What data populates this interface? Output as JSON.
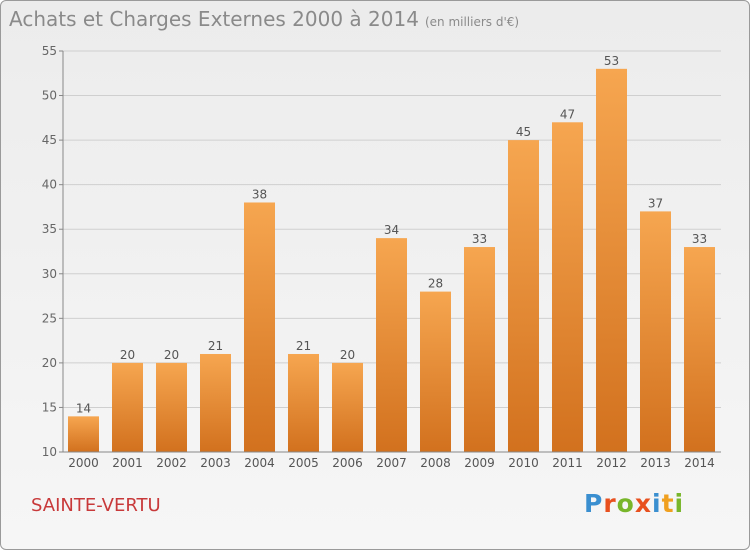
{
  "header": {
    "title": "Achats et Charges Externes 2000 à 2014",
    "subtitle": "(en milliers d'€)"
  },
  "footer": {
    "place": "SAINTE-VERTU",
    "logo": "Proxiti"
  },
  "colors": {
    "bar_top": "#f6a650",
    "bar_bottom": "#d2711e",
    "grid": "#cfcfcf",
    "place": "#c8393a"
  },
  "chart_data": {
    "type": "bar",
    "title": "Achats et Charges Externes 2000 à 2014",
    "subtitle": "(en milliers d'€)",
    "categories": [
      "2000",
      "2001",
      "2002",
      "2003",
      "2004",
      "2005",
      "2006",
      "2007",
      "2008",
      "2009",
      "2010",
      "2011",
      "2012",
      "2013",
      "2014"
    ],
    "values": [
      14,
      20,
      20,
      21,
      38,
      21,
      20,
      34,
      28,
      33,
      45,
      47,
      53,
      37,
      33
    ],
    "ylim": [
      10,
      55
    ],
    "yticks": [
      10,
      15,
      20,
      25,
      30,
      35,
      40,
      45,
      50,
      55
    ],
    "grid": true,
    "legend": "none"
  }
}
